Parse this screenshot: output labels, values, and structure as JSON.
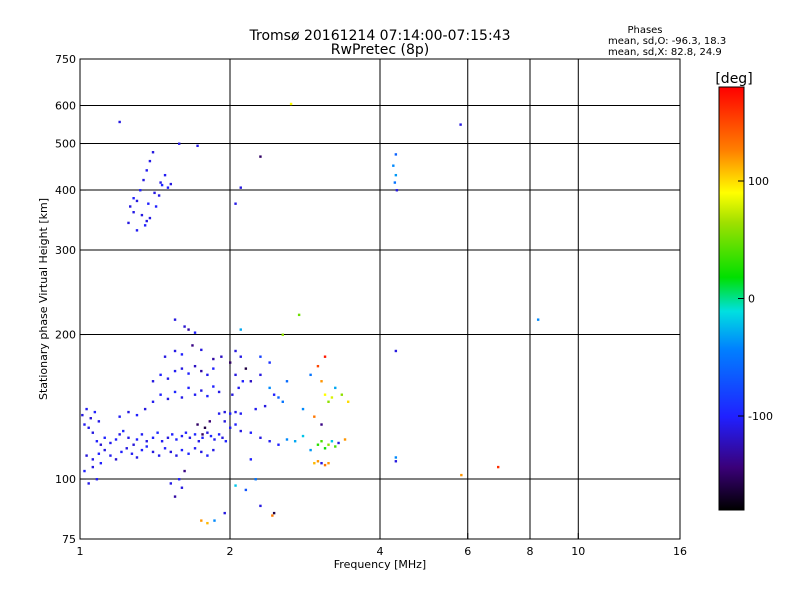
{
  "chart_data": {
    "type": "scatter",
    "title": "Tromsø 20161214 07:14:00-07:15:43",
    "subtitle": "RwPretec (8p)",
    "xlabel": "Frequency [MHz]",
    "ylabel": "Stationary phase Virtual Height [km]",
    "x_scale": "log",
    "y_scale": "log",
    "xlim": [
      1,
      16
    ],
    "ylim": [
      75,
      750
    ],
    "x_ticks": [
      1,
      2,
      4,
      6,
      8,
      10,
      16
    ],
    "x_tick_labels": [
      "1",
      "2",
      "4",
      "6",
      "8",
      "10",
      "16"
    ],
    "y_ticks": [
      75,
      100,
      200,
      300,
      400,
      500,
      600,
      750
    ],
    "y_tick_labels": [
      "75",
      "100",
      "200",
      "300",
      "400",
      "500",
      "600",
      "750"
    ],
    "grid": true,
    "stats": {
      "heading": "Phases",
      "line_o": "mean, sd,O: -96.3, 18.3",
      "line_x": "mean, sd,X:  82.8, 24.9"
    },
    "colorbar": {
      "label": "[deg]",
      "range": [
        -180,
        180
      ],
      "ticks": [
        100,
        0,
        -100
      ],
      "tick_labels": [
        "100",
        "0",
        "-100"
      ],
      "colormap": "rainbow"
    },
    "points": [
      [
        1.02,
        130,
        -105
      ],
      [
        1.04,
        128,
        -108
      ],
      [
        1.06,
        125,
        -110
      ],
      [
        1.08,
        120,
        -100
      ],
      [
        1.1,
        118,
        -115
      ],
      [
        1.12,
        122,
        -98
      ],
      [
        1.15,
        119,
        -105
      ],
      [
        1.18,
        121,
        -100
      ],
      [
        1.2,
        124,
        -110
      ],
      [
        1.22,
        126,
        -95
      ],
      [
        1.25,
        122,
        -108
      ],
      [
        1.28,
        118,
        -112
      ],
      [
        1.3,
        121,
        -100
      ],
      [
        1.33,
        124,
        -104
      ],
      [
        1.36,
        120,
        -110
      ],
      [
        1.4,
        122,
        -100
      ],
      [
        1.43,
        125,
        -95
      ],
      [
        1.46,
        120,
        -105
      ],
      [
        1.5,
        122,
        -110
      ],
      [
        1.53,
        124,
        -100
      ],
      [
        1.56,
        121,
        -98
      ],
      [
        1.6,
        123,
        -104
      ],
      [
        1.63,
        125,
        -100
      ],
      [
        1.66,
        122,
        -110
      ],
      [
        1.7,
        124,
        -95
      ],
      [
        1.73,
        120,
        -108
      ],
      [
        1.76,
        122,
        -100
      ],
      [
        1.8,
        125,
        -110
      ],
      [
        1.83,
        123,
        -96
      ],
      [
        1.86,
        121,
        -104
      ],
      [
        1.9,
        124,
        -100
      ],
      [
        1.93,
        122,
        -110
      ],
      [
        1.96,
        120,
        -98
      ],
      [
        1.03,
        112,
        -112
      ],
      [
        1.06,
        110,
        -108
      ],
      [
        1.09,
        113,
        -100
      ],
      [
        1.12,
        115,
        -110
      ],
      [
        1.15,
        112,
        -105
      ],
      [
        1.18,
        110,
        -115
      ],
      [
        1.21,
        114,
        -100
      ],
      [
        1.24,
        116,
        -110
      ],
      [
        1.27,
        113,
        -104
      ],
      [
        1.3,
        111,
        -108
      ],
      [
        1.33,
        115,
        -100
      ],
      [
        1.36,
        117,
        -96
      ],
      [
        1.4,
        114,
        -110
      ],
      [
        1.44,
        112,
        -105
      ],
      [
        1.48,
        116,
        -100
      ],
      [
        1.52,
        114,
        -112
      ],
      [
        1.56,
        112,
        -108
      ],
      [
        1.6,
        115,
        -100
      ],
      [
        1.65,
        113,
        -96
      ],
      [
        1.7,
        116,
        -104
      ],
      [
        1.75,
        114,
        -110
      ],
      [
        1.8,
        112,
        -100
      ],
      [
        1.85,
        115,
        -108
      ],
      [
        1.02,
        104,
        -100
      ],
      [
        1.04,
        98,
        -108
      ],
      [
        1.06,
        106,
        -110
      ],
      [
        1.08,
        100,
        -104
      ],
      [
        1.1,
        108,
        -100
      ],
      [
        1.01,
        136,
        -110
      ],
      [
        1.03,
        140,
        -105
      ],
      [
        1.05,
        134,
        -115
      ],
      [
        1.07,
        138,
        -100
      ],
      [
        1.09,
        132,
        -108
      ],
      [
        1.2,
        135,
        -104
      ],
      [
        1.25,
        138,
        -110
      ],
      [
        1.3,
        136,
        -100
      ],
      [
        1.35,
        140,
        -110
      ],
      [
        1.4,
        145,
        -105
      ],
      [
        1.45,
        150,
        -100
      ],
      [
        1.5,
        147,
        -110
      ],
      [
        1.55,
        152,
        -96
      ],
      [
        1.6,
        148,
        -108
      ],
      [
        1.65,
        155,
        -100
      ],
      [
        1.7,
        150,
        -104
      ],
      [
        1.75,
        153,
        -110
      ],
      [
        1.8,
        149,
        -98
      ],
      [
        1.85,
        156,
        -100
      ],
      [
        1.9,
        152,
        -108
      ],
      [
        1.4,
        160,
        -110
      ],
      [
        1.45,
        165,
        -100
      ],
      [
        1.5,
        162,
        -108
      ],
      [
        1.55,
        168,
        -104
      ],
      [
        1.6,
        170,
        -110
      ],
      [
        1.65,
        166,
        -100
      ],
      [
        1.7,
        172,
        -120
      ],
      [
        1.75,
        168,
        -130
      ],
      [
        1.8,
        165,
        -105
      ],
      [
        1.85,
        170,
        -100
      ],
      [
        1.48,
        180,
        -110
      ],
      [
        1.55,
        185,
        -108
      ],
      [
        1.6,
        182,
        -100
      ],
      [
        1.68,
        190,
        -140
      ],
      [
        1.75,
        186,
        -110
      ],
      [
        1.85,
        178,
        -130
      ],
      [
        1.92,
        180,
        -120
      ],
      [
        1.55,
        215,
        -110
      ],
      [
        1.62,
        208,
        -115
      ],
      [
        1.7,
        202,
        -100
      ],
      [
        1.65,
        205,
        -130
      ],
      [
        1.72,
        130,
        -150
      ],
      [
        1.78,
        128,
        -160
      ],
      [
        1.82,
        132,
        -145
      ],
      [
        1.76,
        124,
        -150
      ],
      [
        1.9,
        137,
        -105
      ],
      [
        1.95,
        138,
        -110
      ],
      [
        2.0,
        137,
        -100
      ],
      [
        2.05,
        138,
        -108
      ],
      [
        2.1,
        137,
        -104
      ],
      [
        1.95,
        132,
        -110
      ],
      [
        2.0,
        128,
        -104
      ],
      [
        2.05,
        130,
        -100
      ],
      [
        2.1,
        126,
        -110
      ],
      [
        2.02,
        150,
        -110
      ],
      [
        2.08,
        155,
        -105
      ],
      [
        2.12,
        160,
        -100
      ],
      [
        2.05,
        165,
        -110
      ],
      [
        2.15,
        170,
        -160
      ],
      [
        2.0,
        175,
        -150
      ],
      [
        2.1,
        180,
        -108
      ],
      [
        2.05,
        185,
        -110
      ],
      [
        2.2,
        160,
        -120
      ],
      [
        2.25,
        140,
        -105
      ],
      [
        2.35,
        142,
        -110
      ],
      [
        2.45,
        150,
        -100
      ],
      [
        2.5,
        148,
        -60
      ],
      [
        2.55,
        145,
        -50
      ],
      [
        2.4,
        155,
        -40
      ],
      [
        2.6,
        160,
        -55
      ],
      [
        2.3,
        165,
        -110
      ],
      [
        2.2,
        125,
        -100
      ],
      [
        2.3,
        122,
        -110
      ],
      [
        2.4,
        120,
        -104
      ],
      [
        2.5,
        118,
        -100
      ],
      [
        2.6,
        121,
        -40
      ],
      [
        2.7,
        120,
        -30
      ],
      [
        2.8,
        123,
        -20
      ],
      [
        2.9,
        115,
        -35
      ],
      [
        3.0,
        118,
        30
      ],
      [
        3.05,
        120,
        40
      ],
      [
        3.1,
        116,
        20
      ],
      [
        3.15,
        118,
        60
      ],
      [
        3.2,
        120,
        -20
      ],
      [
        3.25,
        117,
        40
      ],
      [
        3.3,
        119,
        -110
      ],
      [
        3.4,
        121,
        120
      ],
      [
        2.9,
        165,
        -50
      ],
      [
        3.0,
        172,
        150
      ],
      [
        3.05,
        160,
        120
      ],
      [
        3.1,
        150,
        90
      ],
      [
        3.15,
        145,
        60
      ],
      [
        3.2,
        148,
        80
      ],
      [
        3.25,
        155,
        -30
      ],
      [
        3.35,
        150,
        60
      ],
      [
        3.45,
        145,
        100
      ],
      [
        2.8,
        140,
        -40
      ],
      [
        2.95,
        135,
        130
      ],
      [
        3.05,
        130,
        -140
      ],
      [
        3.15,
        108,
        120
      ],
      [
        3.05,
        108,
        -110
      ],
      [
        2.75,
        220,
        50
      ],
      [
        2.55,
        200,
        60
      ],
      [
        2.3,
        180,
        -80
      ],
      [
        2.4,
        175,
        -90
      ],
      [
        2.1,
        205,
        -30
      ],
      [
        2.2,
        110,
        -100
      ],
      [
        2.25,
        100,
        -50
      ],
      [
        2.15,
        95,
        -70
      ],
      [
        2.05,
        97,
        -20
      ],
      [
        2.3,
        88,
        -110
      ],
      [
        2.45,
        85,
        -160
      ],
      [
        2.43,
        84,
        130
      ],
      [
        1.55,
        92,
        -130
      ],
      [
        1.6,
        96,
        -110
      ],
      [
        1.58,
        100,
        -100
      ],
      [
        1.62,
        104,
        -140
      ],
      [
        1.52,
        98,
        -108
      ],
      [
        1.75,
        82,
        120
      ],
      [
        1.8,
        81,
        110
      ],
      [
        1.86,
        82,
        -40
      ],
      [
        1.95,
        85,
        -110
      ],
      [
        1.25,
        342,
        -110
      ],
      [
        1.28,
        360,
        -108
      ],
      [
        1.3,
        380,
        -110
      ],
      [
        1.32,
        400,
        -100
      ],
      [
        1.34,
        420,
        -110
      ],
      [
        1.36,
        440,
        -105
      ],
      [
        1.38,
        460,
        -108
      ],
      [
        1.4,
        480,
        -110
      ],
      [
        1.3,
        330,
        -104
      ],
      [
        1.35,
        338,
        -100
      ],
      [
        1.38,
        350,
        -110
      ],
      [
        1.42,
        370,
        -100
      ],
      [
        1.44,
        390,
        -108
      ],
      [
        1.46,
        410,
        -96
      ],
      [
        1.48,
        430,
        -104
      ],
      [
        1.33,
        355,
        -110
      ],
      [
        1.37,
        375,
        -100
      ],
      [
        1.41,
        395,
        -110
      ],
      [
        1.45,
        415,
        -108
      ],
      [
        1.5,
        405,
        -100
      ],
      [
        1.52,
        412,
        -110
      ],
      [
        1.28,
        385,
        -100
      ],
      [
        1.26,
        370,
        -110
      ],
      [
        1.36,
        345,
        -110
      ],
      [
        1.58,
        500,
        -110
      ],
      [
        1.72,
        495,
        -108
      ],
      [
        2.3,
        470,
        -150
      ],
      [
        2.1,
        405,
        -110
      ],
      [
        2.05,
        375,
        -108
      ],
      [
        1.2,
        555,
        -110
      ],
      [
        2.65,
        605,
        90
      ],
      [
        4.3,
        475,
        -60
      ],
      [
        4.25,
        450,
        -40
      ],
      [
        4.3,
        430,
        -35
      ],
      [
        4.28,
        415,
        -50
      ],
      [
        4.32,
        400,
        -110
      ],
      [
        4.3,
        185,
        -110
      ],
      [
        4.3,
        111,
        -40
      ],
      [
        4.3,
        109,
        -110
      ],
      [
        5.8,
        548,
        -110
      ],
      [
        5.82,
        102,
        120
      ],
      [
        6.9,
        106,
        160
      ],
      [
        8.3,
        215,
        -40
      ],
      [
        3.1,
        180,
        170
      ],
      [
        2.95,
        108,
        110
      ],
      [
        3.0,
        109,
        120
      ],
      [
        3.1,
        107,
        130
      ]
    ]
  }
}
